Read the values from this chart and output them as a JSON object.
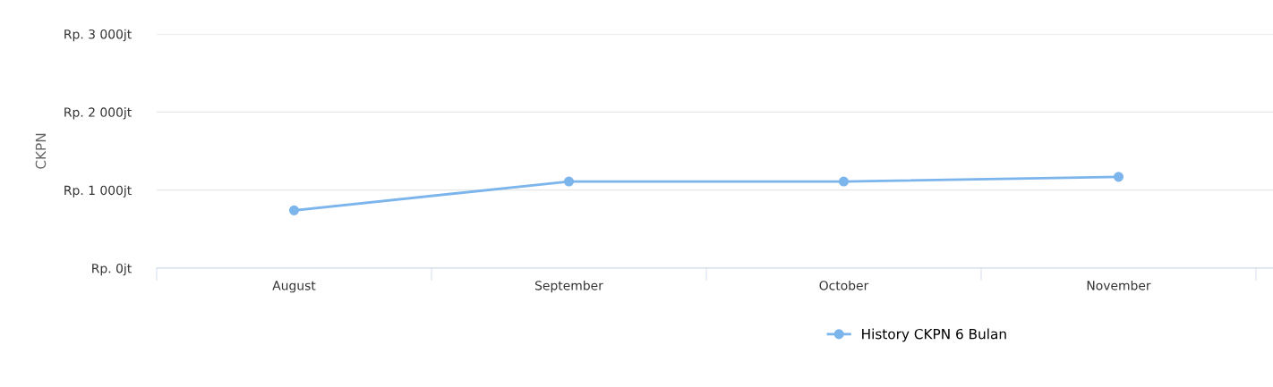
{
  "chart_data": {
    "type": "line",
    "ylabel": "CKPN",
    "categories": [
      "August",
      "September",
      "October",
      "November",
      null
    ],
    "series": [
      {
        "name": "History CKPN 6 Bulan",
        "color": "#7cb5ec",
        "values": [
          740,
          1110,
          1110,
          1170,
          null
        ]
      }
    ],
    "ylim": [
      0,
      3000
    ],
    "yticks": [
      {
        "value": 0,
        "label": "Rp. 0jt"
      },
      {
        "value": 1000,
        "label": "Rp. 1 000jt"
      },
      {
        "value": 2000,
        "label": "Rp. 2 000jt"
      },
      {
        "value": 3000,
        "label": "Rp. 3 000jt"
      }
    ],
    "grid": "y",
    "legend": "bottom",
    "marker": "circle",
    "line_style": "solid"
  }
}
